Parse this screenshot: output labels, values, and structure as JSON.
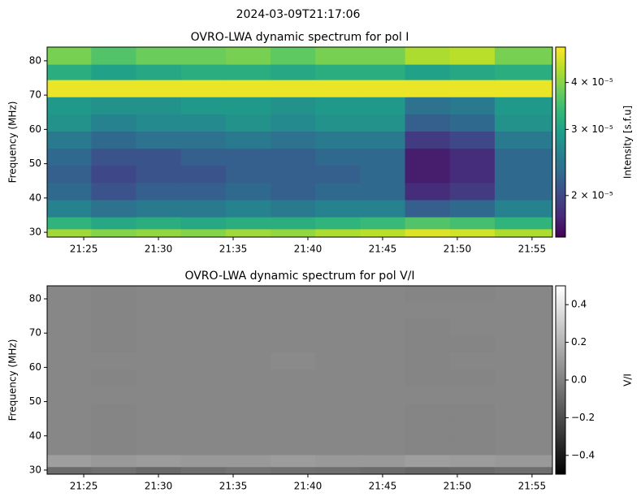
{
  "suptitle": "2024-03-09T21:17:06",
  "chart_data": [
    {
      "type": "heatmap",
      "title": "OVRO-LWA dynamic spectrum for pol I",
      "ylabel": "Frequency (MHz)",
      "colorbar_label": "Intensity [s.f.u]",
      "cmap": "viridis",
      "cscale": "log",
      "clim": [
        1.55e-05,
        4.97e-05
      ],
      "cticks": [
        {
          "value": 2e-05,
          "label": "2 × 10⁻⁵"
        },
        {
          "value": 3e-05,
          "label": "3 × 10⁻⁵"
        },
        {
          "value": 4e-05,
          "label": "4 × 10⁻⁵"
        }
      ],
      "xlim": [
        "21:22:33",
        "21:56:22"
      ],
      "xticks": [
        "21:25",
        "21:30",
        "21:35",
        "21:40",
        "21:45",
        "21:50",
        "21:55"
      ],
      "ylim": [
        28.6,
        84
      ],
      "yticks": [
        30,
        40,
        50,
        60,
        70,
        80
      ],
      "x": [
        "21:24",
        "21:27",
        "21:30",
        "21:33",
        "21:36",
        "21:39",
        "21:42",
        "21:45",
        "21:48",
        "21:51",
        "21:54"
      ],
      "y": [
        30,
        32,
        37,
        42,
        47,
        52,
        57,
        62,
        67,
        72,
        77,
        81
      ],
      "z": [
        [
          4.2e-05,
          4e-05,
          4.1e-05,
          4e-05,
          4.2e-05,
          4.1e-05,
          4.3e-05,
          4.4e-05,
          4.7e-05,
          4.6e-05,
          4.3e-05
        ],
        [
          3.3e-05,
          3.1e-05,
          3.2e-05,
          3.1e-05,
          3.2e-05,
          3.2e-05,
          3.3e-05,
          3.4e-05,
          3.6e-05,
          3.5e-05,
          3.3e-05
        ],
        [
          2.6e-05,
          2.4e-05,
          2.5e-05,
          2.5e-05,
          2.6e-05,
          2.5e-05,
          2.6e-05,
          2.6e-05,
          2.2e-05,
          2.3e-05,
          2.6e-05
        ],
        [
          2.3e-05,
          2.1e-05,
          2.2e-05,
          2.2e-05,
          2.3e-05,
          2.2e-05,
          2.3e-05,
          2.3e-05,
          1.8e-05,
          1.9e-05,
          2.3e-05
        ],
        [
          2.2e-05,
          2e-05,
          2.1e-05,
          2.1e-05,
          2.2e-05,
          2.2e-05,
          2.2e-05,
          2.3e-05,
          1.7e-05,
          1.8e-05,
          2.3e-05
        ],
        [
          2.3e-05,
          2.1e-05,
          2.1e-05,
          2.2e-05,
          2.2e-05,
          2.2e-05,
          2.3e-05,
          2.3e-05,
          1.7e-05,
          1.8e-05,
          2.3e-05
        ],
        [
          2.5e-05,
          2.3e-05,
          2.4e-05,
          2.4e-05,
          2.5e-05,
          2.4e-05,
          2.5e-05,
          2.5e-05,
          1.9e-05,
          2e-05,
          2.5e-05
        ],
        [
          2.8e-05,
          2.6e-05,
          2.7e-05,
          2.7e-05,
          2.8e-05,
          2.7e-05,
          2.8e-05,
          2.8e-05,
          2.2e-05,
          2.3e-05,
          2.8e-05
        ],
        [
          2.9e-05,
          2.8e-05,
          2.8e-05,
          2.9e-05,
          2.9e-05,
          2.8e-05,
          2.9e-05,
          2.9e-05,
          2.4e-05,
          2.5e-05,
          2.9e-05
        ],
        [
          4.8e-05,
          4.8e-05,
          4.8e-05,
          4.8e-05,
          4.8e-05,
          4.8e-05,
          4.8e-05,
          4.8e-05,
          4.8e-05,
          4.8e-05,
          4.8e-05
        ],
        [
          3.2e-05,
          3e-05,
          3.1e-05,
          3.2e-05,
          3.2e-05,
          3.1e-05,
          3.2e-05,
          3.2e-05,
          3e-05,
          3.1e-05,
          3.2e-05
        ],
        [
          3.9e-05,
          3.6e-05,
          3.8e-05,
          3.8e-05,
          3.9e-05,
          3.7e-05,
          3.9e-05,
          3.9e-05,
          4.3e-05,
          4.4e-05,
          3.9e-05
        ]
      ]
    },
    {
      "type": "heatmap",
      "title": "OVRO-LWA dynamic spectrum for pol V/I",
      "ylabel": "Frequency (MHz)",
      "colorbar_label": "V/I",
      "cmap": "gray",
      "cscale": "linear",
      "clim": [
        -0.5,
        0.5
      ],
      "cticks": [
        {
          "value": -0.4,
          "label": "−0.4"
        },
        {
          "value": -0.2,
          "label": "−0.2"
        },
        {
          "value": 0,
          "label": "0.0"
        },
        0.2,
        0.4
      ],
      "xlim": [
        "21:22:33",
        "21:56:22"
      ],
      "xticks": [
        "21:25",
        "21:30",
        "21:35",
        "21:40",
        "21:45",
        "21:50",
        "21:55"
      ],
      "ylim": [
        28.8,
        83.8
      ],
      "yticks": [
        30,
        40,
        50,
        60,
        70,
        80
      ],
      "x": [
        "21:24",
        "21:27",
        "21:30",
        "21:33",
        "21:36",
        "21:39",
        "21:42",
        "21:45",
        "21:48",
        "21:51",
        "21:54"
      ],
      "y": [
        30,
        32,
        37,
        42,
        47,
        52,
        57,
        62,
        67,
        72,
        77,
        81
      ],
      "z": [
        [
          -0.08,
          -0.06,
          -0.09,
          -0.07,
          -0.05,
          -0.06,
          -0.07,
          -0.08,
          -0.1,
          -0.09,
          -0.07
        ],
        [
          0.12,
          0.1,
          0.11,
          0.1,
          0.1,
          0.11,
          0.1,
          0.1,
          0.12,
          0.11,
          0.1
        ],
        [
          0.03,
          0.02,
          0.03,
          0.03,
          0.03,
          0.03,
          0.03,
          0.03,
          0.02,
          0.02,
          0.03
        ],
        [
          0.03,
          0.02,
          0.03,
          0.03,
          0.03,
          0.03,
          0.03,
          0.03,
          0.02,
          0.02,
          0.03
        ],
        [
          0.03,
          0.02,
          0.03,
          0.03,
          0.03,
          0.03,
          0.03,
          0.03,
          0.02,
          0.02,
          0.03
        ],
        [
          0.03,
          0.03,
          0.03,
          0.03,
          0.03,
          0.03,
          0.03,
          0.03,
          0.03,
          0.03,
          0.03
        ],
        [
          0.03,
          0.02,
          0.03,
          0.03,
          0.03,
          0.03,
          0.03,
          0.03,
          0.02,
          0.02,
          0.03
        ],
        [
          0.03,
          0.03,
          0.03,
          0.03,
          0.03,
          0.04,
          0.03,
          0.03,
          0.02,
          0.03,
          0.03
        ],
        [
          0.03,
          0.02,
          0.03,
          0.03,
          0.03,
          0.03,
          0.03,
          0.03,
          0.02,
          0.02,
          0.03
        ],
        [
          0.03,
          0.02,
          0.03,
          0.03,
          0.03,
          0.03,
          0.03,
          0.03,
          0.02,
          0.03,
          0.03
        ],
        [
          0.03,
          0.02,
          0.03,
          0.03,
          0.03,
          0.03,
          0.03,
          0.03,
          0.03,
          0.03,
          0.03
        ],
        [
          0.03,
          0.02,
          0.03,
          0.03,
          0.03,
          0.03,
          0.03,
          0.03,
          0.02,
          0.02,
          0.03
        ]
      ]
    }
  ]
}
